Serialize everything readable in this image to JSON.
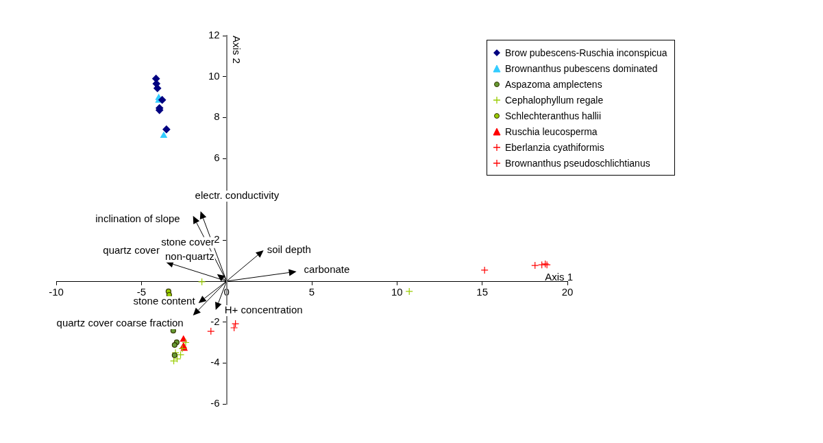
{
  "chart_data": {
    "type": "scatter",
    "xlabel": "Axis 1",
    "ylabel": "Axis 2",
    "xlim": [
      -10,
      20
    ],
    "ylim": [
      -6,
      12
    ],
    "xticks": [
      -10,
      -5,
      0,
      5,
      10,
      15,
      20
    ],
    "yticks": [
      -6,
      -4,
      -2,
      {
        "value": 0,
        "label": null
      },
      2,
      {
        "value": 4,
        "label": null
      },
      6,
      8,
      10,
      12
    ],
    "grid": false,
    "legend": "top right",
    "series": [
      {
        "name": "Brow pubescens-Ruschia inconspicua",
        "color": "#000080",
        "marker": "diamond",
        "x": [
          -4.14,
          -4.12,
          -4.06,
          -3.78,
          -3.94,
          -3.94,
          -3.53
        ],
        "values": [
          9.9,
          9.65,
          9.43,
          8.86,
          8.46,
          8.36,
          7.42
        ]
      },
      {
        "name": "Brownanthus pubescens dominated",
        "color": "#33ccff",
        "marker": "triangle",
        "x": [
          -3.98,
          -3.98,
          -3.69
        ],
        "values": [
          8.96,
          8.83,
          7.11
        ]
      },
      {
        "name": "Aspazoma amplectens",
        "color": "#669933",
        "marker": "circle",
        "x": [
          -3.13,
          -2.93,
          -3.05,
          -3.05
        ],
        "values": [
          -2.42,
          -2.99,
          -3.12,
          -3.62
        ]
      },
      {
        "name": "Cephalophyllum regale",
        "color": "#99cc00",
        "marker": "cross",
        "x": [
          -1.45,
          10.72,
          -3.0,
          -2.9,
          -2.7,
          -3.1,
          -2.6,
          -2.4
        ],
        "values": [
          -0.03,
          -0.5,
          -3.5,
          -3.8,
          -3.6,
          -3.9,
          -3.3,
          -3.0
        ]
      },
      {
        "name": "Schlechteranthus hallii",
        "color": "#99cc00",
        "marker": "circle",
        "x": [
          -3.41,
          -3.37
        ],
        "values": [
          -0.5,
          -0.67
        ]
      },
      {
        "name": "Ruschia leucosperma",
        "color": "#ff0000",
        "marker": "triangle",
        "x": [
          -2.53,
          -2.53,
          -2.49
        ],
        "values": [
          -2.85,
          -3.19,
          -3.3
        ]
      },
      {
        "name": "Eberlanzia cyathiformis",
        "color": "#ff0000",
        "marker": "cross",
        "x": [
          -0.92,
          0.52,
          0.44
        ],
        "values": [
          -2.45,
          -2.08,
          -2.28
        ]
      },
      {
        "name": "Brownanthus pseudoschlichtianus",
        "color": "#ff0000",
        "marker": "cross",
        "x": [
          15.14,
          18.1,
          18.5,
          18.7,
          18.8
        ],
        "values": [
          0.54,
          0.77,
          0.8,
          0.84,
          0.8
        ]
      }
    ],
    "annotations": [
      "electr. conductivity",
      "inclination of slope",
      "quartz cover",
      "stone cover non-quartz",
      "soil depth",
      "carbonate",
      "stone content",
      "quartz cover coarse fraction",
      "H+ concentration"
    ]
  }
}
